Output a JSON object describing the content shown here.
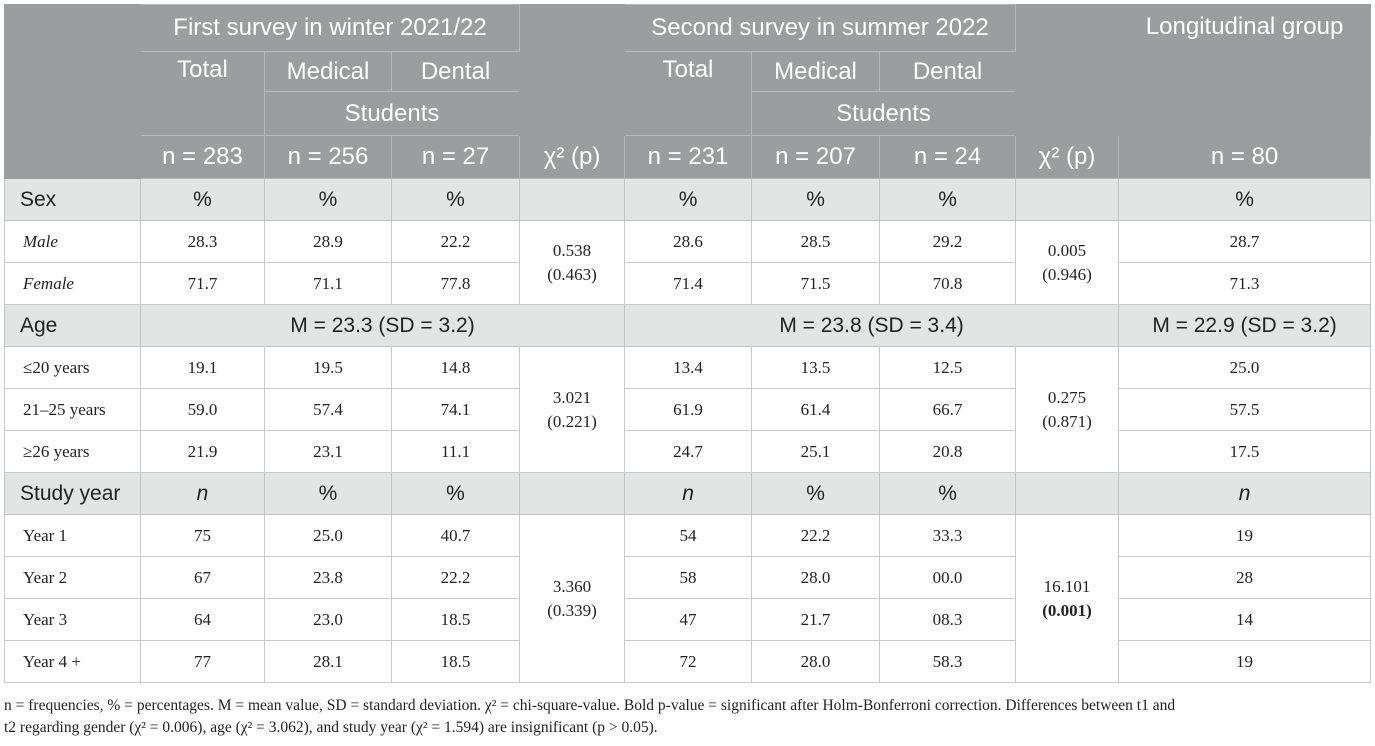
{
  "header": {
    "survey1": "First survey in winter 2021/22",
    "survey2": "Second survey in summer 2022",
    "longitudinal": "Longitudinal group",
    "total": "Total",
    "medical": "Medical",
    "dental": "Dental",
    "students": "Students",
    "n1_total": "n = 283",
    "n1_medical": "n = 256",
    "n1_dental": "n = 27",
    "chi1": "χ² (p)",
    "n2_total": "n = 231",
    "n2_medical": "n = 207",
    "n2_dental": "n = 24",
    "chi2": "χ² (p)",
    "n_long": "n = 80"
  },
  "sex": {
    "label": "Sex",
    "units": [
      "%",
      "%",
      "%",
      "%",
      "%",
      "%",
      "%"
    ],
    "rows": [
      {
        "label": "Male",
        "v": [
          "28.3",
          "28.9",
          "22.2",
          "28.6",
          "28.5",
          "29.2",
          "28.7"
        ]
      },
      {
        "label": "Female",
        "v": [
          "71.7",
          "71.1",
          "77.8",
          "71.4",
          "71.5",
          "70.8",
          "71.3"
        ]
      }
    ],
    "chi1": [
      "0.538",
      "(0.463)"
    ],
    "chi2": [
      "0.005",
      "(0.946)"
    ]
  },
  "age": {
    "label": "Age",
    "m1": "M = 23.3 (SD = 3.2)",
    "m2": "M = 23.8 (SD = 3.4)",
    "m3": "M = 22.9 (SD = 3.2)",
    "rows": [
      {
        "label": "≤20 years",
        "v": [
          "19.1",
          "19.5",
          "14.8",
          "13.4",
          "13.5",
          "12.5",
          "25.0"
        ]
      },
      {
        "label": "21–25 years",
        "v": [
          "59.0",
          "57.4",
          "74.1",
          "61.9",
          "61.4",
          "66.7",
          "57.5"
        ]
      },
      {
        "label": "≥26 years",
        "v": [
          "21.9",
          "23.1",
          "11.1",
          "24.7",
          "25.1",
          "20.8",
          "17.5"
        ]
      }
    ],
    "chi1": [
      "3.021",
      "(0.221)"
    ],
    "chi2": [
      "0.275",
      "(0.871)"
    ]
  },
  "study": {
    "label": "Study year",
    "units": [
      "n",
      "%",
      "%",
      "n",
      "%",
      "%",
      "n"
    ],
    "rows": [
      {
        "label": "Year 1",
        "v": [
          "75",
          "25.0",
          "40.7",
          "54",
          "22.2",
          "33.3",
          "19"
        ]
      },
      {
        "label": "Year 2",
        "v": [
          "67",
          "23.8",
          "22.2",
          "58",
          "28.0",
          "00.0",
          "28"
        ]
      },
      {
        "label": "Year 3",
        "v": [
          "64",
          "23.0",
          "18.5",
          "47",
          "21.7",
          "08.3",
          "14"
        ]
      },
      {
        "label": "Year 4 +",
        "v": [
          "77",
          "28.1",
          "18.5",
          "72",
          "28.0",
          "58.3",
          "19"
        ]
      }
    ],
    "chi1": [
      "3.360",
      "(0.339)"
    ],
    "chi2": [
      "16.101",
      "(0.001)"
    ]
  },
  "note": {
    "line1": "n = frequencies, % = percentages. M = mean value, SD = standard deviation. χ² = chi-square-value. Bold p-value = significant after Holm-Bonferroni correction. Differences between t1 and",
    "line2": "t2 regarding gender (χ² = 0.006), age (χ² = 3.062), and study year (χ² = 1.594) are insignificant (p > 0.05)."
  }
}
